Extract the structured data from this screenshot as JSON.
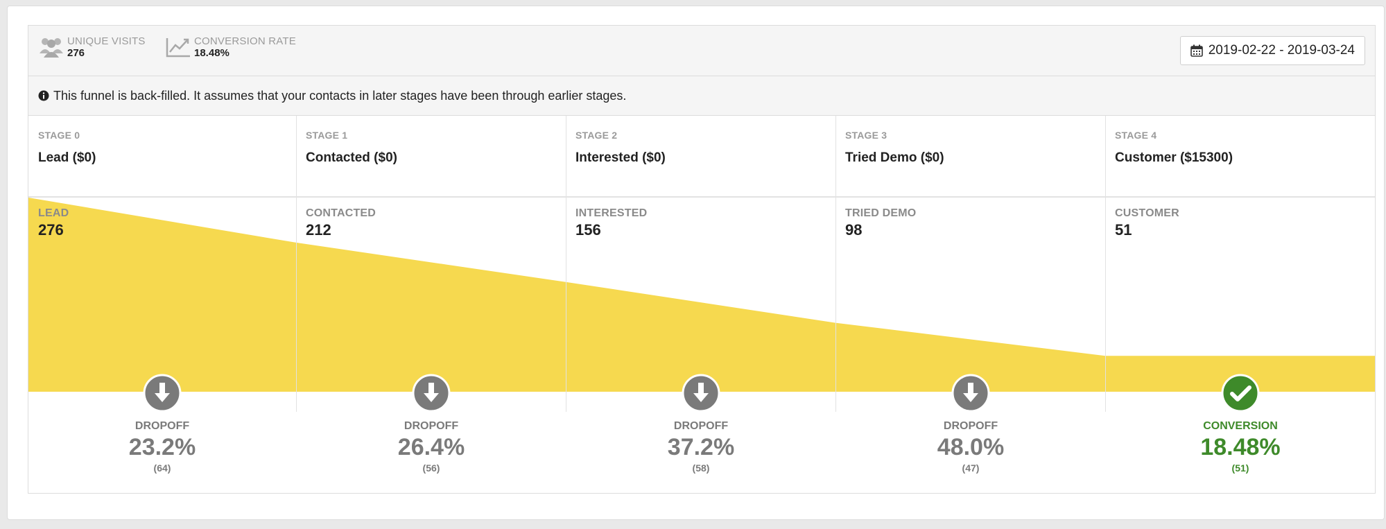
{
  "stats": {
    "unique_visits": {
      "label": "UNIQUE VISITS",
      "value": "276",
      "icon": "users-icon"
    },
    "conversion_rate": {
      "label": "CONVERSION RATE",
      "value": "18.48%",
      "icon": "line-chart-icon"
    }
  },
  "date_range": {
    "label": "2019-02-22 - 2019-03-24",
    "icon": "calendar-icon"
  },
  "notice": {
    "text": "This funnel is back-filled. It assumes that your contacts in later stages have been through earlier stages.",
    "icon": "info-icon"
  },
  "colors": {
    "funnel": "#f6d94f",
    "dropoff": "#7a7a7a",
    "conversion": "#3e8a2a"
  },
  "stages": [
    {
      "stage_label": "STAGE 0",
      "name": "Lead ($0)",
      "count_label": "LEAD",
      "count": "276"
    },
    {
      "stage_label": "STAGE 1",
      "name": "Contacted ($0)",
      "count_label": "CONTACTED",
      "count": "212"
    },
    {
      "stage_label": "STAGE 2",
      "name": "Interested ($0)",
      "count_label": "INTERESTED",
      "count": "156"
    },
    {
      "stage_label": "STAGE 3",
      "name": "Tried Demo ($0)",
      "count_label": "TRIED DEMO",
      "count": "98"
    },
    {
      "stage_label": "STAGE 4",
      "name": "Customer ($15300)",
      "count_label": "CUSTOMER",
      "count": "51"
    }
  ],
  "outcomes": [
    {
      "label": "DROPOFF",
      "pct": "23.2%",
      "count": "(64)",
      "type": "dropoff",
      "icon": "arrow-down-icon"
    },
    {
      "label": "DROPOFF",
      "pct": "26.4%",
      "count": "(56)",
      "type": "dropoff",
      "icon": "arrow-down-icon"
    },
    {
      "label": "DROPOFF",
      "pct": "37.2%",
      "count": "(58)",
      "type": "dropoff",
      "icon": "arrow-down-icon"
    },
    {
      "label": "DROPOFF",
      "pct": "48.0%",
      "count": "(47)",
      "type": "dropoff",
      "icon": "arrow-down-icon"
    },
    {
      "label": "CONVERSION",
      "pct": "18.48%",
      "count": "(51)",
      "type": "conversion",
      "icon": "check-icon"
    }
  ],
  "funnel_values": [
    276,
    212,
    156,
    98,
    51
  ]
}
